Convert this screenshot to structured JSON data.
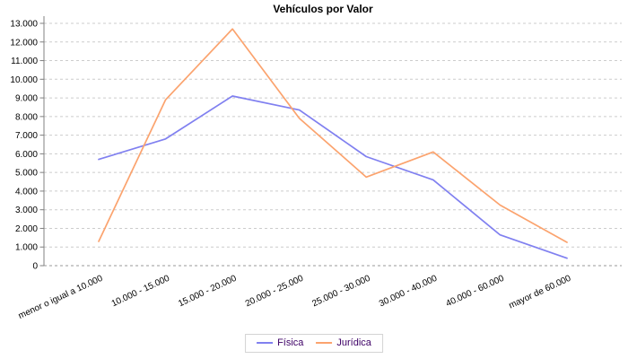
{
  "title": "Vehículos por Valor",
  "chart_data": {
    "type": "line",
    "title": "Vehículos por Valor",
    "categories": [
      "menor o igual a 10.000",
      "10.000 - 15.000",
      "15.000 - 20.000",
      "20.000 - 25.000",
      "25.000 - 30.000",
      "30.000 - 40.000",
      "40.000 - 60.000",
      "mayor de 60.000"
    ],
    "series": [
      {
        "name": "Física",
        "color": "#8080f0",
        "values": [
          5700,
          6800,
          9100,
          8350,
          5850,
          4600,
          1650,
          400
        ]
      },
      {
        "name": "Jurídica",
        "color": "#fba36e",
        "values": [
          1300,
          8900,
          12700,
          7900,
          4750,
          6100,
          3250,
          1250
        ]
      }
    ],
    "ylim": [
      0,
      13000
    ],
    "ytick_step": 1000,
    "ytick_labels": [
      "0",
      "1.000",
      "2.000",
      "3.000",
      "4.000",
      "5.000",
      "6.000",
      "7.000",
      "8.000",
      "9.000",
      "10.000",
      "11.000",
      "12.000",
      "13.000"
    ],
    "grid": "horizontal-dashed",
    "legend_position": "bottom"
  },
  "legend": {
    "items": [
      {
        "label": "Física",
        "color": "#8080f0"
      },
      {
        "label": "Jurídica",
        "color": "#fba36e"
      }
    ]
  },
  "colors": {
    "grid": "#cccccc",
    "zero_line": "#999999",
    "axis": "#808080",
    "tick_text": "#000000",
    "legend_text": "#3d0066",
    "background": "#ffffff"
  }
}
